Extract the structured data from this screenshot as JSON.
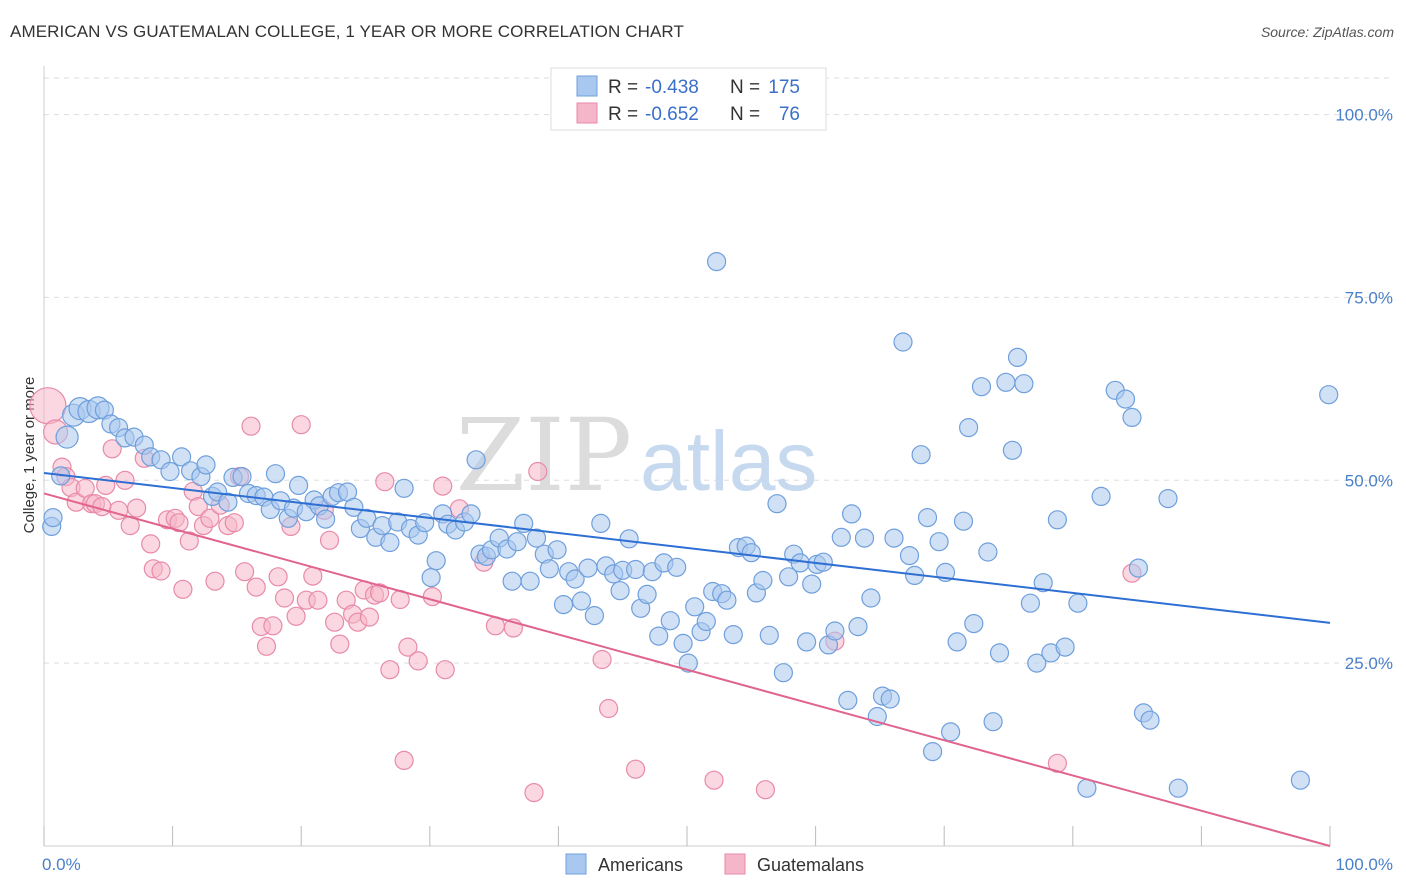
{
  "title": "AMERICAN VS GUATEMALAN COLLEGE, 1 YEAR OR MORE CORRELATION CHART",
  "source": "Source: ZipAtlas.com",
  "watermark": {
    "zip": "ZIP",
    "atlas": "atlas"
  },
  "colors": {
    "blue_fill": "#a9c8ef",
    "blue_stroke": "#6f9fdc",
    "blue_line": "#2e6fd4",
    "pink_fill": "#f5b6c9",
    "pink_stroke": "#e88aaa",
    "pink_line": "#e0648e",
    "grid": "#dddddd",
    "tick_text": "#4a7fc9"
  },
  "legend": {
    "r_label": "R =",
    "n_label": "N =",
    "rows": [
      {
        "series": "Americans",
        "r": "-0.438",
        "n": "175"
      },
      {
        "series": "Guatemalans",
        "r": "-0.652",
        "n": "76"
      }
    ]
  },
  "chart_data": {
    "type": "scatter",
    "title": "AMERICAN VS GUATEMALAN COLLEGE, 1 YEAR OR MORE CORRELATION CHART",
    "xlabel": "",
    "ylabel": "College, 1 year or more",
    "xlim": [
      0,
      100
    ],
    "ylim": [
      0,
      105
    ],
    "x_tick_labels": [
      "0.0%",
      "100.0%"
    ],
    "y_ticks": [
      25,
      50,
      75,
      100
    ],
    "y_tick_labels": [
      "25.0%",
      "50.0%",
      "75.0%",
      "100.0%"
    ],
    "legend_position": "top-center",
    "series": [
      {
        "name": "Americans",
        "color": "#a9c8ef",
        "trendline": {
          "x": [
            0,
            100
          ],
          "y": [
            51.0,
            30.5
          ]
        },
        "points": [
          [
            0.6,
            43.7
          ],
          [
            0.7,
            44.9
          ],
          [
            1.3,
            50.6
          ],
          [
            1.8,
            55.9
          ],
          [
            2.3,
            58.9
          ],
          [
            2.8,
            59.8
          ],
          [
            3.5,
            59.4
          ],
          [
            4.2,
            59.9
          ],
          [
            4.7,
            59.6
          ],
          [
            5.2,
            57.7
          ],
          [
            5.8,
            57.2
          ],
          [
            6.3,
            55.8
          ],
          [
            7.0,
            55.9
          ],
          [
            7.8,
            54.8
          ],
          [
            8.3,
            53.2
          ],
          [
            9.1,
            52.8
          ],
          [
            9.8,
            51.2
          ],
          [
            10.7,
            53.2
          ],
          [
            11.4,
            51.3
          ],
          [
            12.2,
            50.5
          ],
          [
            12.6,
            52.1
          ],
          [
            13.1,
            47.8
          ],
          [
            13.5,
            48.4
          ],
          [
            14.3,
            47.0
          ],
          [
            14.7,
            50.4
          ],
          [
            15.4,
            50.5
          ],
          [
            15.9,
            48.2
          ],
          [
            16.5,
            47.9
          ],
          [
            17.1,
            47.7
          ],
          [
            17.6,
            46.0
          ],
          [
            18.0,
            50.9
          ],
          [
            18.4,
            47.2
          ],
          [
            19.0,
            44.8
          ],
          [
            19.4,
            46.2
          ],
          [
            19.8,
            49.3
          ],
          [
            20.4,
            45.7
          ],
          [
            21.0,
            47.3
          ],
          [
            21.4,
            46.5
          ],
          [
            21.9,
            44.7
          ],
          [
            22.4,
            47.8
          ],
          [
            22.9,
            48.3
          ],
          [
            23.6,
            48.4
          ],
          [
            24.1,
            46.3
          ],
          [
            24.6,
            43.4
          ],
          [
            25.1,
            44.8
          ],
          [
            25.8,
            42.2
          ],
          [
            26.3,
            43.8
          ],
          [
            26.9,
            41.5
          ],
          [
            27.5,
            44.3
          ],
          [
            28.0,
            48.9
          ],
          [
            28.5,
            43.4
          ],
          [
            29.1,
            42.5
          ],
          [
            29.6,
            44.2
          ],
          [
            30.1,
            36.7
          ],
          [
            30.5,
            39.0
          ],
          [
            31.0,
            45.4
          ],
          [
            31.4,
            44.0
          ],
          [
            32.0,
            43.2
          ],
          [
            32.7,
            44.3
          ],
          [
            33.2,
            45.4
          ],
          [
            33.6,
            52.8
          ],
          [
            33.9,
            39.9
          ],
          [
            34.4,
            39.6
          ],
          [
            34.8,
            40.5
          ],
          [
            35.4,
            42.1
          ],
          [
            36.0,
            40.6
          ],
          [
            36.4,
            36.2
          ],
          [
            36.8,
            41.6
          ],
          [
            37.3,
            44.1
          ],
          [
            37.8,
            36.2
          ],
          [
            38.3,
            42.1
          ],
          [
            38.9,
            39.9
          ],
          [
            39.3,
            37.9
          ],
          [
            39.9,
            40.5
          ],
          [
            40.4,
            33.0
          ],
          [
            40.8,
            37.5
          ],
          [
            41.3,
            36.5
          ],
          [
            41.8,
            33.5
          ],
          [
            42.3,
            38.0
          ],
          [
            42.8,
            31.5
          ],
          [
            43.3,
            44.1
          ],
          [
            43.7,
            38.3
          ],
          [
            44.3,
            37.2
          ],
          [
            44.8,
            34.9
          ],
          [
            45.0,
            37.7
          ],
          [
            45.5,
            42.0
          ],
          [
            46.0,
            37.8
          ],
          [
            46.4,
            32.5
          ],
          [
            46.9,
            34.4
          ],
          [
            47.3,
            37.5
          ],
          [
            47.8,
            28.7
          ],
          [
            48.2,
            38.7
          ],
          [
            48.7,
            30.8
          ],
          [
            49.2,
            38.1
          ],
          [
            49.7,
            27.7
          ],
          [
            50.1,
            25.0
          ],
          [
            50.6,
            32.7
          ],
          [
            51.1,
            29.3
          ],
          [
            51.5,
            30.7
          ],
          [
            52.0,
            34.8
          ],
          [
            52.3,
            79.9
          ],
          [
            52.7,
            34.5
          ],
          [
            53.1,
            33.6
          ],
          [
            53.6,
            28.9
          ],
          [
            54.0,
            40.8
          ],
          [
            54.6,
            41.0
          ],
          [
            55.0,
            40.1
          ],
          [
            55.4,
            34.6
          ],
          [
            55.9,
            36.3
          ],
          [
            56.4,
            28.8
          ],
          [
            57.0,
            46.8
          ],
          [
            57.5,
            23.7
          ],
          [
            57.9,
            36.8
          ],
          [
            58.3,
            39.9
          ],
          [
            58.8,
            38.7
          ],
          [
            59.3,
            27.9
          ],
          [
            59.7,
            35.8
          ],
          [
            60.1,
            38.5
          ],
          [
            60.6,
            38.8
          ],
          [
            61.0,
            27.5
          ],
          [
            61.5,
            29.4
          ],
          [
            62.0,
            42.2
          ],
          [
            62.5,
            19.9
          ],
          [
            62.8,
            45.4
          ],
          [
            63.3,
            30.0
          ],
          [
            63.8,
            42.1
          ],
          [
            64.3,
            33.9
          ],
          [
            64.8,
            17.7
          ],
          [
            65.2,
            20.5
          ],
          [
            65.8,
            20.1
          ],
          [
            66.1,
            42.1
          ],
          [
            66.8,
            68.9
          ],
          [
            67.3,
            39.7
          ],
          [
            67.7,
            37.0
          ],
          [
            68.2,
            53.5
          ],
          [
            68.7,
            44.9
          ],
          [
            69.1,
            12.9
          ],
          [
            69.6,
            41.6
          ],
          [
            70.1,
            37.4
          ],
          [
            70.5,
            15.6
          ],
          [
            71.0,
            27.9
          ],
          [
            71.5,
            44.4
          ],
          [
            71.9,
            57.2
          ],
          [
            72.3,
            30.4
          ],
          [
            72.9,
            62.8
          ],
          [
            73.4,
            40.2
          ],
          [
            73.8,
            17.0
          ],
          [
            74.3,
            26.4
          ],
          [
            74.8,
            63.4
          ],
          [
            75.3,
            54.1
          ],
          [
            75.7,
            66.8
          ],
          [
            76.2,
            63.2
          ],
          [
            76.7,
            33.2
          ],
          [
            77.2,
            25.0
          ],
          [
            77.7,
            36.0
          ],
          [
            78.3,
            26.4
          ],
          [
            78.8,
            44.6
          ],
          [
            79.4,
            27.2
          ],
          [
            80.4,
            33.2
          ],
          [
            81.1,
            7.9
          ],
          [
            82.2,
            47.8
          ],
          [
            83.3,
            62.3
          ],
          [
            84.1,
            61.1
          ],
          [
            84.6,
            58.6
          ],
          [
            85.1,
            38.0
          ],
          [
            85.5,
            18.2
          ],
          [
            86.0,
            17.2
          ],
          [
            87.4,
            47.5
          ],
          [
            88.2,
            7.9
          ],
          [
            97.7,
            9.0
          ],
          [
            99.9,
            61.7
          ]
        ]
      },
      {
        "name": "Guatemalans",
        "color": "#f5b6c9",
        "trendline": {
          "x": [
            0,
            100
          ],
          "y": [
            48.2,
            0
          ]
        },
        "points": [
          [
            0.3,
            60.2
          ],
          [
            0.9,
            56.6
          ],
          [
            1.4,
            51.8
          ],
          [
            1.7,
            50.5
          ],
          [
            2.1,
            49.0
          ],
          [
            2.5,
            47.0
          ],
          [
            3.2,
            48.9
          ],
          [
            3.7,
            46.8
          ],
          [
            4.0,
            46.8
          ],
          [
            4.5,
            46.4
          ],
          [
            4.8,
            49.3
          ],
          [
            5.3,
            54.3
          ],
          [
            5.8,
            45.9
          ],
          [
            6.3,
            50.0
          ],
          [
            6.7,
            43.8
          ],
          [
            7.2,
            46.2
          ],
          [
            7.8,
            53.0
          ],
          [
            8.3,
            41.3
          ],
          [
            8.5,
            37.9
          ],
          [
            9.1,
            37.6
          ],
          [
            9.6,
            44.6
          ],
          [
            10.2,
            44.8
          ],
          [
            10.5,
            44.2
          ],
          [
            10.8,
            35.1
          ],
          [
            11.3,
            41.7
          ],
          [
            11.6,
            48.5
          ],
          [
            12.0,
            46.4
          ],
          [
            12.4,
            43.8
          ],
          [
            12.9,
            44.8
          ],
          [
            13.3,
            36.2
          ],
          [
            13.7,
            46.6
          ],
          [
            14.3,
            43.8
          ],
          [
            14.8,
            44.2
          ],
          [
            15.2,
            50.5
          ],
          [
            15.6,
            37.5
          ],
          [
            16.1,
            57.4
          ],
          [
            16.5,
            35.4
          ],
          [
            16.9,
            30.0
          ],
          [
            17.3,
            27.3
          ],
          [
            17.8,
            30.1
          ],
          [
            18.2,
            36.8
          ],
          [
            18.7,
            33.9
          ],
          [
            19.2,
            43.7
          ],
          [
            19.6,
            31.4
          ],
          [
            20.0,
            57.6
          ],
          [
            20.4,
            33.6
          ],
          [
            20.9,
            36.9
          ],
          [
            21.3,
            33.6
          ],
          [
            21.8,
            45.9
          ],
          [
            22.2,
            41.8
          ],
          [
            22.6,
            30.6
          ],
          [
            23.0,
            27.6
          ],
          [
            23.5,
            33.6
          ],
          [
            24.0,
            31.7
          ],
          [
            24.4,
            30.6
          ],
          [
            24.9,
            35.0
          ],
          [
            25.3,
            31.3
          ],
          [
            25.7,
            34.3
          ],
          [
            26.1,
            34.6
          ],
          [
            26.5,
            49.8
          ],
          [
            26.9,
            24.1
          ],
          [
            27.7,
            33.7
          ],
          [
            28.0,
            11.7
          ],
          [
            28.3,
            27.2
          ],
          [
            29.1,
            25.3
          ],
          [
            30.2,
            34.1
          ],
          [
            31.0,
            49.2
          ],
          [
            31.2,
            24.1
          ],
          [
            32.3,
            46.1
          ],
          [
            34.2,
            38.8
          ],
          [
            35.1,
            30.1
          ],
          [
            36.5,
            29.8
          ],
          [
            38.1,
            7.3
          ],
          [
            38.4,
            51.2
          ],
          [
            43.4,
            25.5
          ],
          [
            43.9,
            18.8
          ],
          [
            46.0,
            10.5
          ],
          [
            52.1,
            9.0
          ],
          [
            56.1,
            7.7
          ],
          [
            61.5,
            28.0
          ],
          [
            78.8,
            11.3
          ],
          [
            84.6,
            37.3
          ]
        ]
      }
    ]
  }
}
